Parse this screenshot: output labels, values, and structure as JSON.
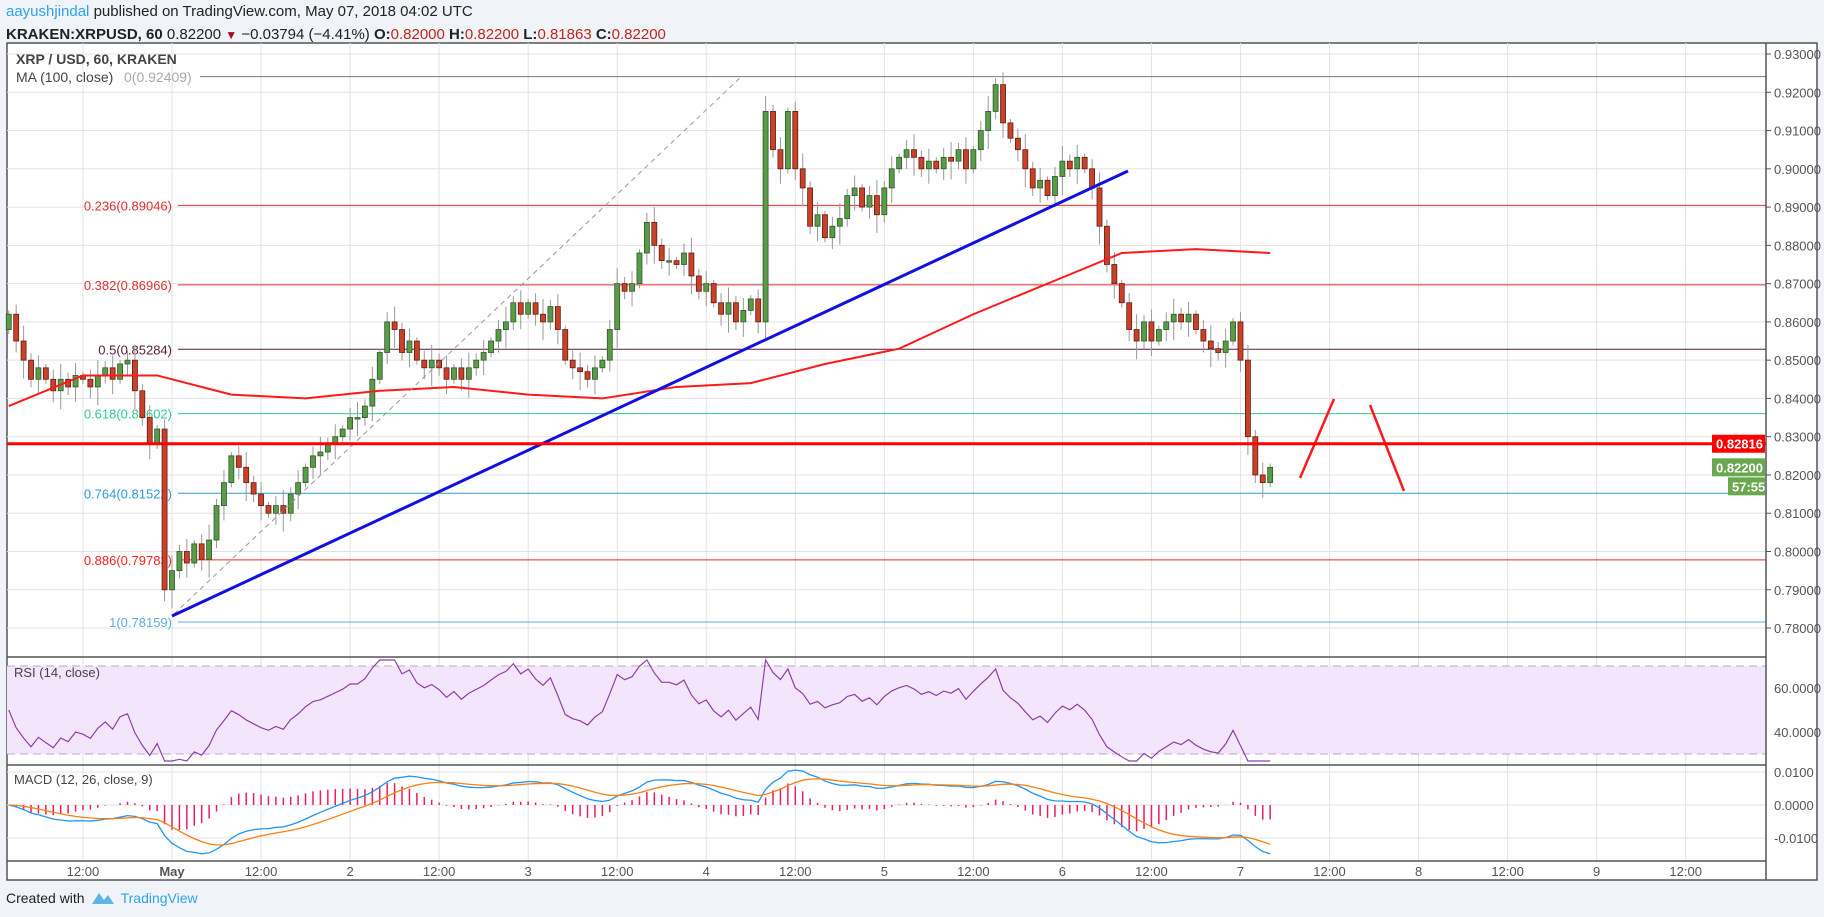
{
  "header": {
    "author": "aayushjindal",
    "published": "published on TradingView.com, May 07, 2018 04:02 UTC",
    "symbol": "KRAKEN:XRPUSD, 60",
    "last": "0.82200",
    "change": "−0.03794 (−4.41%)",
    "o_label": "O:",
    "o": "0.82000",
    "h_label": "H:",
    "h": "0.82200",
    "l_label": "L:",
    "l": "0.81863",
    "c_label": "C:",
    "c": "0.82200",
    "change_direction_icon": "triangle-down-icon"
  },
  "legend": {
    "title": "XRP / USD, 60, KRAKEN",
    "ma": "MA (100, close)",
    "ma_value": "0(0.92409)"
  },
  "rsi_label": "RSI (14, close)",
  "macd_label": "MACD (12, 26, close, 9)",
  "footer": {
    "created": "Created with",
    "brand": "TradingView",
    "logo_icon": "tradingview-logo-icon"
  },
  "colors": {
    "up": "#5b9a4b",
    "down": "#c6422a",
    "ma": "#ff1a1a",
    "trendline": "#1010e0",
    "support": "#ff0000",
    "rsi": "#8e3fa8",
    "rsi_band": "#f3e6fc",
    "macd": "#2196f3",
    "signal": "#ff7f0e",
    "hist": "#e91e63",
    "price_tag": "#6aa84f"
  },
  "chart_data": {
    "type": "candlestick",
    "interval": "60",
    "price_axis": [
      "0.93000",
      "0.92000",
      "0.91000",
      "0.90000",
      "0.89000",
      "0.88000",
      "0.87000",
      "0.86000",
      "0.85000",
      "0.84000",
      "0.83000",
      "0.82000",
      "0.81000",
      "0.80000",
      "0.79000",
      "0.78000"
    ],
    "ylim": [
      0.775,
      0.935
    ],
    "time_axis": [
      "12:00",
      "May",
      "12:00",
      "2",
      "12:00",
      "3",
      "12:00",
      "4",
      "12:00",
      "5",
      "12:00",
      "6",
      "12:00",
      "7",
      "12:00",
      "8",
      "12:00",
      "9",
      "12:00"
    ],
    "closes": [
      0.862,
      0.855,
      0.85,
      0.845,
      0.848,
      0.845,
      0.842,
      0.845,
      0.843,
      0.846,
      0.845,
      0.843,
      0.846,
      0.848,
      0.845,
      0.849,
      0.85,
      0.842,
      0.835,
      0.828,
      0.832,
      0.79,
      0.795,
      0.8,
      0.797,
      0.802,
      0.798,
      0.803,
      0.812,
      0.818,
      0.825,
      0.822,
      0.818,
      0.815,
      0.812,
      0.81,
      0.812,
      0.81,
      0.815,
      0.818,
      0.822,
      0.825,
      0.826,
      0.828,
      0.83,
      0.832,
      0.835,
      0.835,
      0.838,
      0.845,
      0.852,
      0.86,
      0.858,
      0.852,
      0.855,
      0.85,
      0.848,
      0.85,
      0.848,
      0.845,
      0.848,
      0.845,
      0.848,
      0.85,
      0.852,
      0.855,
      0.858,
      0.86,
      0.865,
      0.862,
      0.865,
      0.862,
      0.86,
      0.864,
      0.858,
      0.85,
      0.848,
      0.847,
      0.845,
      0.848,
      0.85,
      0.858,
      0.87,
      0.868,
      0.87,
      0.878,
      0.886,
      0.88,
      0.876,
      0.876,
      0.875,
      0.878,
      0.872,
      0.868,
      0.87,
      0.865,
      0.862,
      0.865,
      0.86,
      0.863,
      0.866,
      0.86,
      0.915,
      0.905,
      0.9,
      0.915,
      0.9,
      0.895,
      0.885,
      0.888,
      0.882,
      0.885,
      0.887,
      0.893,
      0.895,
      0.89,
      0.893,
      0.888,
      0.895,
      0.9,
      0.903,
      0.905,
      0.903,
      0.9,
      0.902,
      0.9,
      0.903,
      0.902,
      0.905,
      0.9,
      0.905,
      0.91,
      0.915,
      0.922,
      0.912,
      0.908,
      0.905,
      0.9,
      0.895,
      0.897,
      0.893,
      0.898,
      0.902,
      0.9,
      0.903,
      0.9,
      0.895,
      0.885,
      0.875,
      0.87,
      0.865,
      0.858,
      0.855,
      0.86,
      0.855,
      0.858,
      0.86,
      0.862,
      0.86,
      0.862,
      0.858,
      0.855,
      0.853,
      0.852,
      0.855,
      0.86,
      0.85,
      0.83,
      0.82,
      0.818,
      0.822
    ],
    "ma100_every_10_bars": [
      0.838,
      0.846,
      0.846,
      0.841,
      0.84,
      0.842,
      0.843,
      0.841,
      0.84,
      0.843,
      0.844,
      0.849,
      0.853,
      0.862,
      0.87,
      0.878,
      0.879,
      0.878
    ],
    "fib_levels": [
      {
        "label": "0(0.92409)",
        "price": 0.92409,
        "color": "#787878"
      },
      {
        "label": "0.236(0.89046)",
        "price": 0.89046,
        "color": "#e03030"
      },
      {
        "label": "0.382(0.86966)",
        "price": 0.86966,
        "color": "#e03030"
      },
      {
        "label": "0.5(0.85284)",
        "price": 0.85284,
        "color": "#5a1a3a"
      },
      {
        "label": "0.618(0.83602)",
        "price": 0.83602,
        "color": "#2ecc8f"
      },
      {
        "label": "0.764(0.81522)",
        "price": 0.81522,
        "color": "#2f9ad8"
      },
      {
        "label": "0.886(0.79783)",
        "price": 0.79783,
        "color": "#ff2020"
      },
      {
        "label": "1(0.78159)",
        "price": 0.78159,
        "color": "#5ab0e0"
      }
    ],
    "support": {
      "price": 0.82816,
      "label": "0.82816"
    },
    "last_price_tag": "0.82200",
    "countdown": "57:55",
    "rsi_axis": [
      "60.0000",
      "40.0000"
    ],
    "rsi_bands": [
      70,
      30
    ],
    "macd_axis": [
      "0.0100",
      "0.0000",
      "-0.0100"
    ]
  }
}
